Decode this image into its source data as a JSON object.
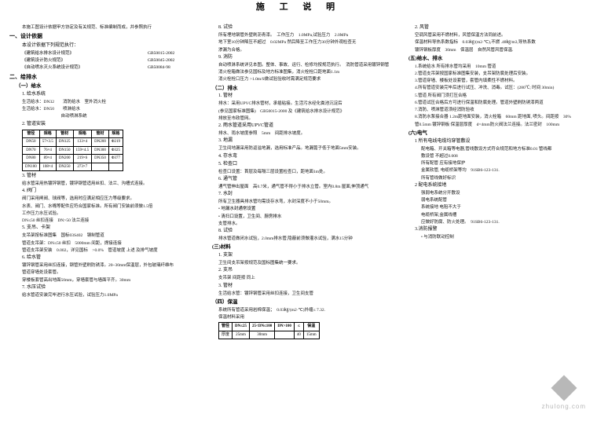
{
  "title": "施 工 说 明",
  "col1": {
    "intro": "本施工图设计依据甲方协定及有关规范、标准编制而成，并参照执行",
    "h1": "一、设计依据",
    "stds": [
      {
        "name": "《建筑给水排水设计规范》",
        "code": "GB50015-2002"
      },
      {
        "name": "《建筑设计防火规范》",
        "code": "GB50045-2002"
      },
      {
        "name": "《自动喷水灭火系统设计规范》",
        "code": "GB50084-98"
      }
    ],
    "h2": "二、给排水",
    "h21": "（一）给水",
    "s1t": "1. 给水系统",
    "s1a": "生活给水：DN32",
    "s1b": "消防给水",
    "s1c": "室外消火栓",
    "s1d": "生活给水：DN50",
    "s1e": "喷淋给水",
    "s1f": "自动喷淋系统",
    "s2t": "2. 管道安装",
    "tbl1": {
      "headers": [
        "管径",
        "规格",
        "管材",
        "规格",
        "管材",
        "规格"
      ],
      "rows": [
        [
          "DN50",
          "57×3.5",
          "DN125",
          "133×4",
          "DN200",
          "Φ219"
        ],
        [
          "DN70",
          "76×4",
          "DN150",
          "159×4.5",
          "DN300",
          "Φ325"
        ],
        [
          "DN80",
          "89×4",
          "DN200",
          "219×6",
          "DN350",
          "Φ377"
        ],
        [
          "DN100",
          "108×4",
          "DN250",
          "273×7",
          "",
          ""
        ]
      ]
    },
    "s3t": "3. 管材",
    "s3p": "给水管采用热镀锌钢管，镀锌钢管适用丝扣、法兰、沟槽式连接。",
    "s4t": "4. 阀门",
    "s4p1": "阀门采用闸阀、球阀等，选用时应满足相应压力等级要求。",
    "s4p2": "水表、阀门、水嘴等配件应符合国家标准。所有阀门安装前须做1.5倍",
    "s4p3": "工作压力水压试验。",
    "s4p4": "DN≤50 丝扣连接　DN>50 法兰连接",
    "s4p5": "阀门规格：DN100 闸板阀",
    "s5t": "5. 支吊、卡架",
    "s5p1": "支吊架按标准图集　国标03S402　钢制管道",
    "s5p2": "管道支吊架：DN≤50 丝扣　5000mm 间距，焊接连接",
    "s5p3": "管道支吊架安装　0.002，详见国标　>0.0%　管道坡度 上述 及排气坡度",
    "s6t": "6. 给水管",
    "s6p1": "镀锌钢管采用丝扣连接，钢管外壁刷防锈漆。20~30mm保温层，外包玻璃纤维布",
    "s6p2": "管道穿墙处设套管。",
    "s6p3": "穿楼板套管高出地面50mm，穿墙套管与墙面平齐。30mm",
    "s7t": "7. 水压试验",
    "s7p": "给水管道安装完毕进行水压试验，试验压力1.0MPa"
  },
  "col2": {
    "s8t": "8. 试验",
    "s8p1": "所有埋地钢管外壁刷沥青漆。",
    "s8p2": "工作压力　1.0MPa,试验压力　2.0MPa",
    "s8p3": "地下室10分钟降压不超过　0.02MPa 然后降至工作压力30分钟外观检查无",
    "s8p4": "渗漏为合格。",
    "s9t": "9. 消防",
    "s9p1": "自动喷淋系统详见本图。整体、事故、运行、检修均按规范执行。",
    "s9p2": "消防管道采用镀锌钢管",
    "s9p3": "消火栓箱做法参见国标及地方标准图集，消火栓栓口距地面1.1m",
    "s9p4": "消火栓栓口压力 >1.0m/S做试验验收时需满足规范要求",
    "h22": "（二）排水",
    "s1t": "1. 管材",
    "s1p1": "排水：采用UPVC排水管材，承插粘接。生活污水经化粪池沉淀后",
    "s1p2": "(参见国家标准图集)　GB50015-2000 及《建筑给水排水设计规范》",
    "s1p3": "排放至市政管网。",
    "s2t": "2. 雨水管道采用UPVC管道",
    "s2p": "排水、雨水坡度参照　5mm　间距排水坡度。",
    "s3t": "3. 地漏",
    "s3p": "卫生间地漏采用防返溢地漏，选用标准产品。地漏篦子低于地面5mm安装。",
    "s4t": "4. 存水弯",
    "s5t": "5. 检查口",
    "s5p": "检查口设置：首层及每隔三层设置检查口，距地面1m处。",
    "s6t": "6. 通气管",
    "s6p": "通气管伸出屋面　高0.7米，通气管不得小于排水立管。室内0.8m 屋面,伸顶通气",
    "s7t": "7. 水封",
    "s7p1": "所有卫生器具排水管均需设存水弯，水封深度不小于50mm。",
    "s7p2": "地漏水封通常设置",
    "s7p3": "清扫口设置，卫生间、厨房排水",
    "s7p4": "支管排水。",
    "s8p": "排水管道做闭水试验，2.0mm排水管,隐蔽前须做灌水试验，满水15分钟",
    "h3": "(三)材料",
    "m1": "1. 支架",
    "m1p": "卫生间支吊架按规范及国标图集统一要求。",
    "m2": "2. 支吊",
    "m2p": "支吊架 间距按 同上",
    "m3": "3. 管材",
    "m3p1": "生活给水管：镀锌钢管采用丝扣连接，卫生间支管",
    "h4": "（四）保温",
    "m4p1": "系统所有管道采用岩棉保温；　0.03㎏/(m2·℃)外缠≤ 7.32.",
    "m4p2": "保温材料采用",
    "tbl2": {
      "headers": [
        "管径",
        "DN≤25",
        "25<DN≤100",
        "DN>100",
        "≤",
        "保温"
      ],
      "rows": [
        [
          "厚度",
          "25mm",
          "30mm",
          "",
          "40",
          "15mm"
        ]
      ]
    }
  },
  "col3": {
    "s2t": "2. 风管",
    "s2p1": "空调风管采用不燃材料，风管保温方法同前述。",
    "s2p2": "保温材料导热系数指标　0.03㎏/(m2·℃),不燃 .48㎏/m3,导热系数",
    "s2p3": "镀锌钢板厚度　30mm　保温层　自然风管风管保温.",
    "h5": "(五)给水、排水",
    "e1": "1.系统给水 所有排水管均采用　10mm 管道",
    "e2": "2.管道支吊架按国家标准图集安装，支吊架防腐处理后安装。",
    "e3": "3.管道穿墙、楼板处设套管，套管内填柔性不燃材料。",
    "e4": "4.所有管道安装完毕后进行试压、冲洗、消毒。试压：(280℃; 时间 30min)",
    "e5": "5.管道 所有阀门须打压合格",
    "e6": "6.管道试压合格后方可进行保温和防腐处理。管道外壁刷防锈漆两道",
    "e7": "7.消防、喷淋管道须经消防验收",
    "e8": "8.消防水泵接合器 1.2m距地面安装，消火栓箱　60mm 距地面, 喷头。间距按　30%",
    "e9": "管0.5mm 镀锌钢板 保温层厚度　d=4mm防火阀法兰连接。法兰密封　100mm",
    "h6": "(六)电气",
    "f1": "1 所有电线电缆均穿管敷设",
    "f1p1": "配电箱、开关箱等电器,管线敷设方式符合规范和地方标准0.01 管线都",
    "f1p2": "敷设管 不超过0.008",
    "f1p3": "所有配管 应有接地保护",
    "f1p4": "金属软管, 电缆桥架等均　91SB6-123-131.",
    "f1p5": "所有管线做好标识",
    "f2": "2 配电系统接地",
    "f2p1": "强弱电系统分开敷设",
    "f2p2": "弱电系统配管",
    "f2p3": "系统接地 电阻不大于",
    "f2p4": "电缆桥架,金属线槽",
    "f2p5": "应做好防腐、防火处理。　91SB6-123-131.",
    "f3": "3.消防报警",
    "f3p": "• 与消防联动控制"
  },
  "logo": "zhulong.com"
}
